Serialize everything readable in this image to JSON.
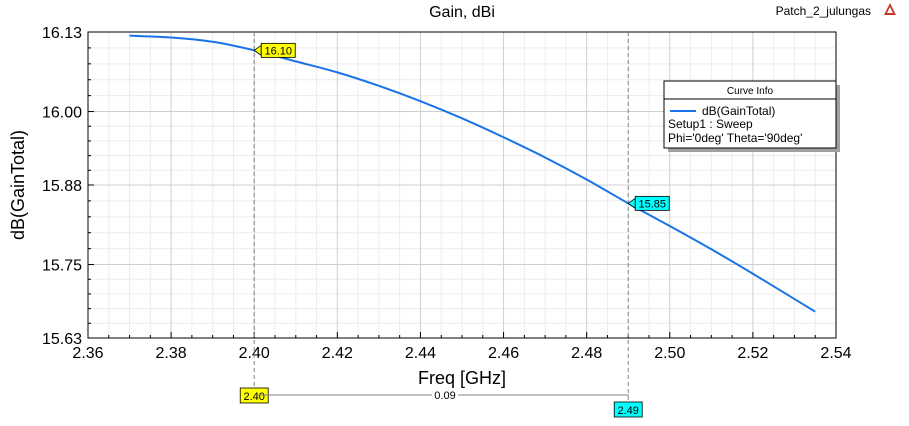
{
  "project_name": "Patch_2_julungas",
  "chart_data": {
    "type": "line",
    "title": "Gain, dBi",
    "xlabel": "Freq [GHz]",
    "ylabel": "dB(GainTotal)",
    "xlim": [
      2.36,
      2.54
    ],
    "ylim": [
      15.63,
      16.13
    ],
    "xticks": [
      2.36,
      2.38,
      2.4,
      2.42,
      2.44,
      2.46,
      2.48,
      2.5,
      2.52,
      2.54
    ],
    "xtick_labels": [
      "2.36",
      "2.38",
      "2.40",
      "2.42",
      "2.44",
      "2.46",
      "2.48",
      "2.50",
      "2.52",
      "2.54"
    ],
    "yticks": [
      15.63,
      15.75,
      15.88,
      16.0,
      16.13
    ],
    "ytick_labels": [
      "15.63",
      "15.75",
      "15.88",
      "16.00",
      "16.13"
    ],
    "grid": true,
    "series": [
      {
        "name": "dB(GainTotal)",
        "color": "#1a73e8",
        "x": [
          2.37,
          2.38,
          2.39,
          2.4,
          2.41,
          2.42,
          2.43,
          2.44,
          2.45,
          2.46,
          2.47,
          2.48,
          2.49,
          2.5,
          2.51,
          2.52,
          2.535
        ],
        "y": [
          16.124,
          16.121,
          16.114,
          16.1,
          16.082,
          16.064,
          16.042,
          16.017,
          15.989,
          15.958,
          15.925,
          15.889,
          15.85,
          15.813,
          15.775,
          15.735,
          15.673
        ]
      }
    ],
    "legend": {
      "title": "Curve Info",
      "entry": "dB(GainTotal)",
      "lines": [
        "Setup1 : Sweep",
        "Phi='0deg' Theta='90deg'"
      ],
      "placement": "top-right"
    },
    "markers": [
      {
        "x": 2.4,
        "y": 16.1,
        "label": "16.10",
        "x_label": "2.40",
        "color": "#ffff00"
      },
      {
        "x": 2.49,
        "y": 15.85,
        "label": "15.85",
        "x_label": "2.49",
        "color": "#00ffff"
      }
    ],
    "delta_label": "0.09"
  }
}
